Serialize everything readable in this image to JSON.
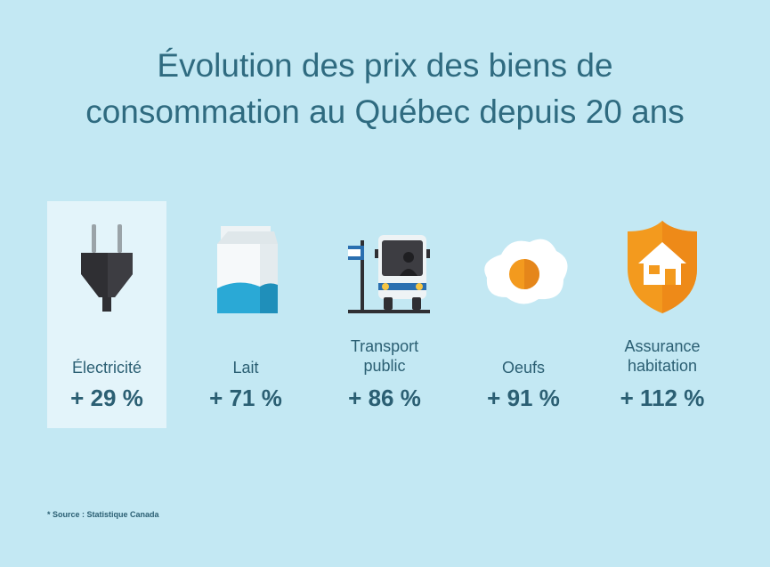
{
  "title": {
    "line1": "Évolution des prix des biens de",
    "line2": "consommation au Québec depuis 20 ans"
  },
  "items": [
    {
      "icon": "plug-icon",
      "label_line1": "Électricité",
      "label_line2": "",
      "value": "+ 29 %",
      "highlight": true
    },
    {
      "icon": "milk-carton-icon",
      "label_line1": "Lait",
      "label_line2": "",
      "value": "+ 71 %",
      "highlight": false
    },
    {
      "icon": "bus-icon",
      "label_line1": "Transport",
      "label_line2": "public",
      "value": "+ 86 %",
      "highlight": false
    },
    {
      "icon": "egg-icon",
      "label_line1": "Oeufs",
      "label_line2": "",
      "value": "+ 91 %",
      "highlight": false
    },
    {
      "icon": "house-shield-icon",
      "label_line1": "Assurance",
      "label_line2": "habitation",
      "value": "+ 112 %",
      "highlight": false
    }
  ],
  "source": "* Source : Statistique Canada",
  "colors": {
    "background": "#c3e8f3",
    "highlight": "#e3f4fa",
    "text": "#2b5f73",
    "shield": "#f39a1e",
    "milk_blue": "#2aa9d6"
  }
}
